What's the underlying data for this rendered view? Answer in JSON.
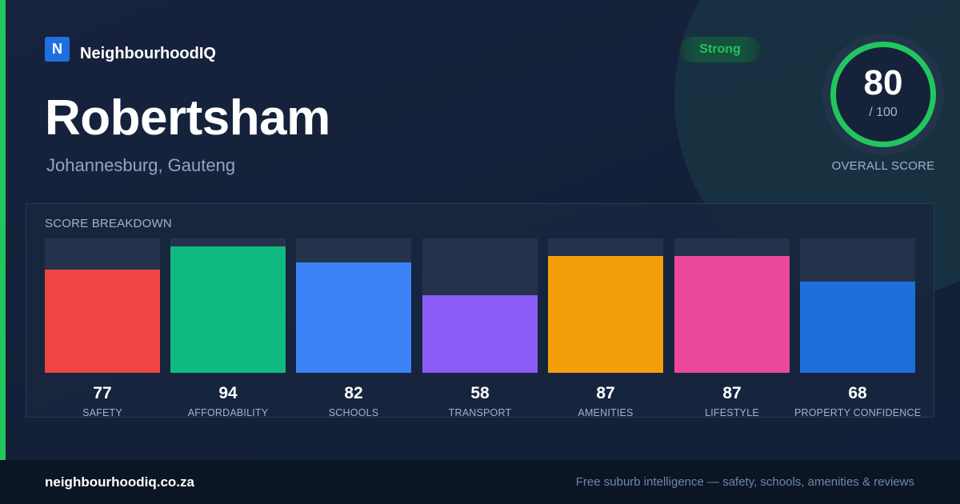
{
  "brand": {
    "logo_letter": "N",
    "name": "NeighbourhoodIQ"
  },
  "suburb": {
    "name": "Robertsham",
    "location": "Johannesburg, Gauteng"
  },
  "rating_badge": {
    "label": "Strong",
    "color": "#22c55e"
  },
  "overall": {
    "score": "80",
    "max_label": "/ 100",
    "score_value": 80,
    "label": "OVERALL SCORE"
  },
  "breakdown": {
    "title": "SCORE BREAKDOWN",
    "items": [
      {
        "label": "SAFETY",
        "value": 77,
        "color": "#ef4444"
      },
      {
        "label": "AFFORDABILITY",
        "value": 94,
        "color": "#10b981"
      },
      {
        "label": "SCHOOLS",
        "value": 82,
        "color": "#3b82f6"
      },
      {
        "label": "TRANSPORT",
        "value": 58,
        "color": "#8b5cf6"
      },
      {
        "label": "AMENITIES",
        "value": 87,
        "color": "#f59e0b"
      },
      {
        "label": "LIFESTYLE",
        "value": 87,
        "color": "#ec4899"
      },
      {
        "label": "PROPERTY CONFIDENCE",
        "value": 68,
        "color": "#1d6fdb"
      }
    ]
  },
  "footer": {
    "url": "neighbourhoodiq.co.za",
    "tagline": "Free suburb intelligence — safety, schools, amenities & reviews"
  }
}
